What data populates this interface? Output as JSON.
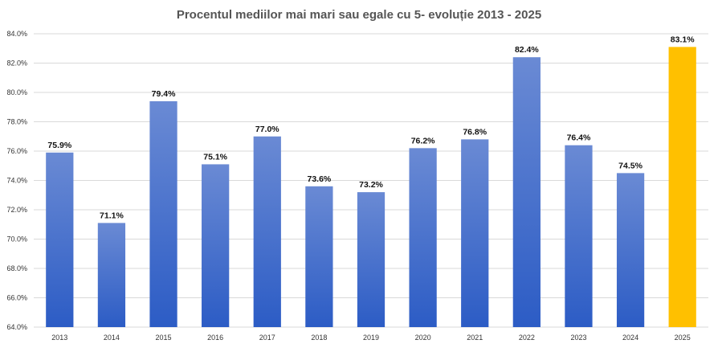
{
  "chart_data": {
    "type": "bar",
    "title": "Procentul mediilor mai mari sau egale cu 5- evoluție 2013 - 2025",
    "xlabel": "",
    "ylabel": "",
    "categories": [
      "2013",
      "2014",
      "2015",
      "2016",
      "2017",
      "2018",
      "2019",
      "2020",
      "2021",
      "2022",
      "2023",
      "2024",
      "2025"
    ],
    "values": [
      75.9,
      71.1,
      79.4,
      75.1,
      77.0,
      73.6,
      73.2,
      76.2,
      76.8,
      82.4,
      76.4,
      74.5,
      83.1
    ],
    "data_labels": [
      "75.9%",
      "71.1%",
      "79.4%",
      "75.1%",
      "77.0%",
      "73.6%",
      "73.2%",
      "76.2%",
      "76.8%",
      "82.4%",
      "76.4%",
      "74.5%",
      "83.1%"
    ],
    "ylim": [
      64,
      84
    ],
    "yticks": [
      64,
      66,
      68,
      70,
      72,
      74,
      76,
      78,
      80,
      82,
      84
    ],
    "ytick_labels": [
      "64.0%",
      "66.0%",
      "68.0%",
      "70.0%",
      "72.0%",
      "74.0%",
      "76.0%",
      "78.0%",
      "80.0%",
      "82.0%",
      "84.0%"
    ],
    "grid": true,
    "legend": "none",
    "colors": {
      "bar_top": "#6a8ad4",
      "bar_bottom": "#2c5cc5",
      "highlight": "#ffc000",
      "grid": "#d9d9d9"
    },
    "highlight_category": "2025"
  }
}
